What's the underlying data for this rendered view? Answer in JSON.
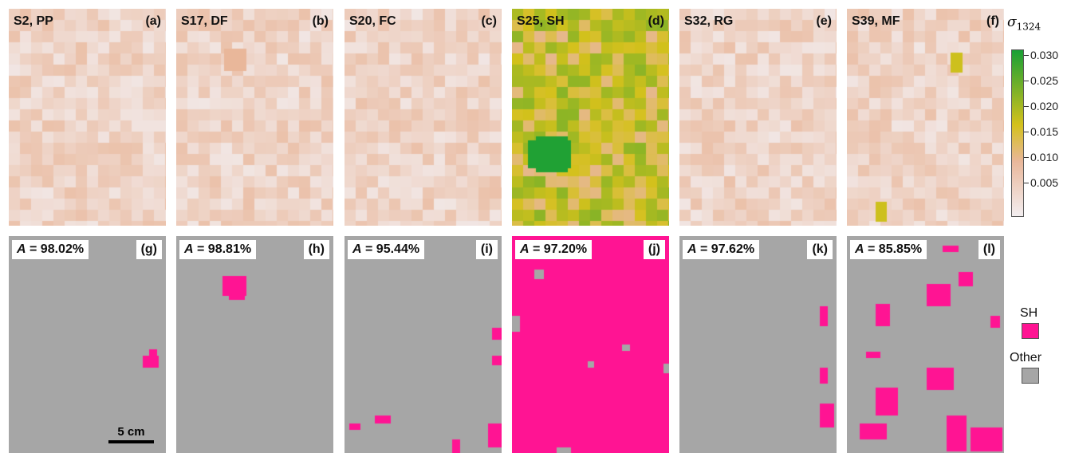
{
  "top_panels": [
    {
      "label": "S2, PP",
      "letter": "(a)"
    },
    {
      "label": "S17, DF",
      "letter": "(b)"
    },
    {
      "label": "S20, FC",
      "letter": "(c)"
    },
    {
      "label": "S25, SH",
      "letter": "(d)"
    },
    {
      "label": "S32, RG",
      "letter": "(e)"
    },
    {
      "label": "S39, MF",
      "letter": "(f)"
    }
  ],
  "bottom_panels": [
    {
      "accuracy": "= 98.02%",
      "letter": "(g)"
    },
    {
      "accuracy": "= 98.81%",
      "letter": "(h)"
    },
    {
      "accuracy": "= 95.44%",
      "letter": "(i)"
    },
    {
      "accuracy": "= 97.20%",
      "letter": "(j)"
    },
    {
      "accuracy": "= 97.62%",
      "letter": "(k)"
    },
    {
      "accuracy": "= 85.85%",
      "letter": "(l)"
    }
  ],
  "accuracy_symbol": "A",
  "scale_bar": "5 cm",
  "colorbar": {
    "title_symbol": "σ",
    "title_sub": "1324",
    "ticks": [
      "0.030",
      "0.025",
      "0.020",
      "0.015",
      "0.010",
      "0.005"
    ],
    "colors": {
      "low": "#f3eef0",
      "mid_low": "#e9b79a",
      "mid": "#d4c11c",
      "high": "#19a035"
    }
  },
  "legend": {
    "sh_label": "SH",
    "other_label": "Other",
    "sh_color": "#ff1493",
    "other_color": "#a6a6a6"
  }
}
